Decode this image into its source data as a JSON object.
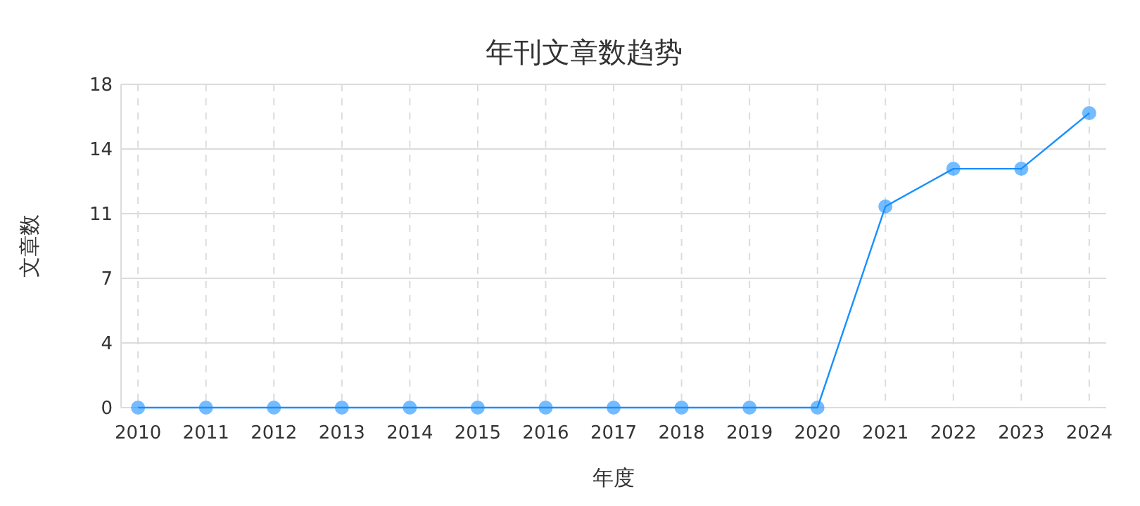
{
  "chart_data": {
    "type": "line",
    "title": "年刊文章数趋势",
    "xlabel": "年度",
    "ylabel": "文章数",
    "categories": [
      "2010",
      "2011",
      "2012",
      "2013",
      "2014",
      "2015",
      "2016",
      "2017",
      "2018",
      "2019",
      "2020",
      "2021",
      "2022",
      "2023",
      "2024"
    ],
    "series": [
      {
        "color": "#1890ff",
        "values": [
          0,
          0,
          0,
          0,
          0,
          0,
          0,
          0,
          0,
          0,
          0,
          11.2,
          13.3,
          13.3,
          16.4
        ]
      }
    ],
    "ylim": [
      0,
      18
    ],
    "yticks": [
      0,
      {
        "value": 3.6,
        "label": "4"
      },
      {
        "value": 7.2,
        "label": "7"
      },
      {
        "value": 10.8,
        "label": "11"
      },
      {
        "value": 14.4,
        "label": "14"
      },
      18
    ],
    "grid": true,
    "marker": "circle",
    "line_style": "solid"
  }
}
